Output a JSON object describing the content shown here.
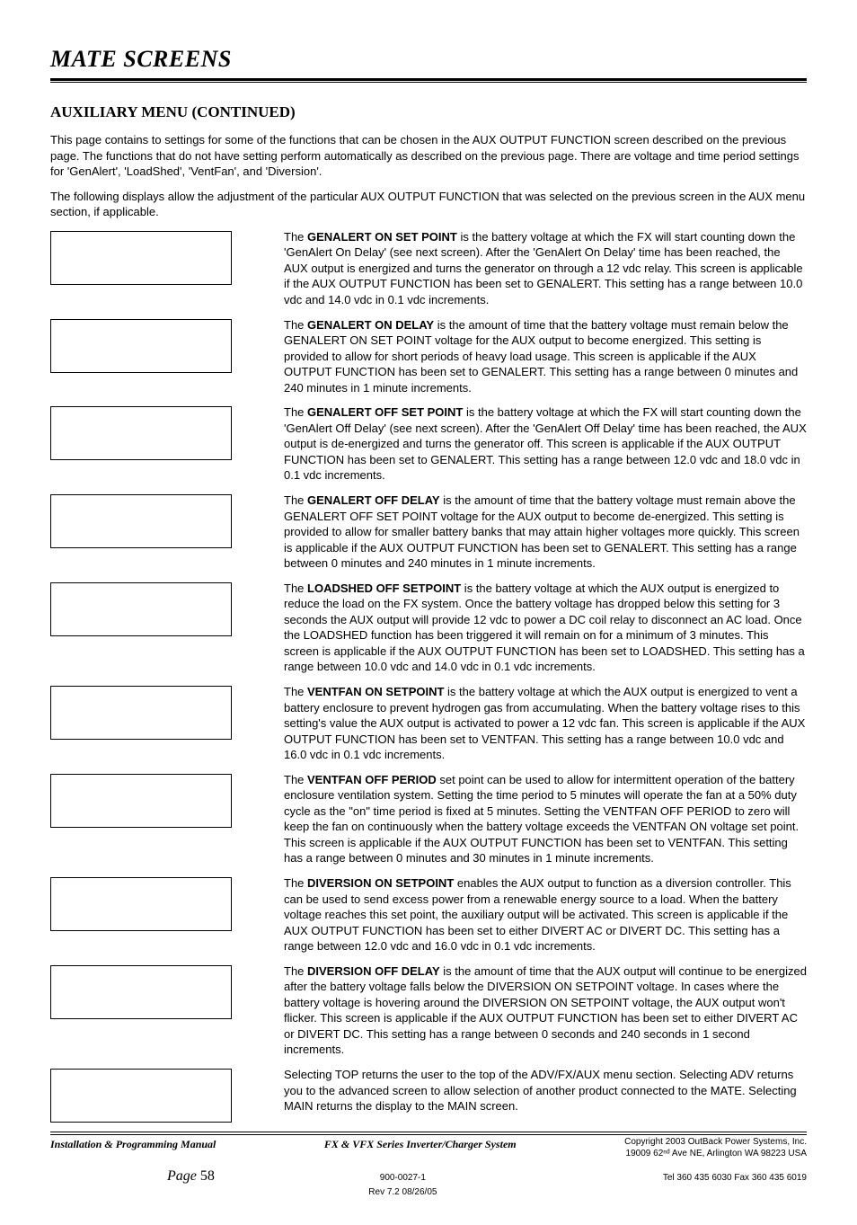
{
  "header": {
    "title": "MATE SCREENS"
  },
  "section": {
    "title": "AUXILIARY MENU (CONTINUED)",
    "intro1": "This page contains to settings for some of the functions that can be chosen in the AUX OUTPUT FUNCTION screen described on the previous page.  The functions that do not have setting perform automatically as described on the previous page.  There are voltage and time period settings for 'GenAlert', 'LoadShed', 'VentFan', and 'Diversion'.",
    "intro2": "The following displays allow the adjustment of the particular AUX OUTPUT FUNCTION that was selected on the previous screen in the AUX menu section, if applicable."
  },
  "entries": [
    {
      "label": "GENALERT ON SET POINT",
      "prefix": "The ",
      "text": " is the battery voltage at which the FX will start counting down the 'GenAlert On Delay' (see next screen).  After the 'GenAlert On Delay' time has been reached, the AUX output is energized and turns the generator on through a 12 vdc relay.  This screen is applicable if the AUX OUTPUT FUNCTION has been set to GENALERT.  This setting has a range between 10.0 vdc and 14.0 vdc in 0.1 vdc increments."
    },
    {
      "label": "GENALERT ON DELAY",
      "prefix": "The ",
      "text": " is the amount of time that the battery voltage must remain below the GENALERT ON SET POINT voltage for the AUX output to become energized.  This setting is provided to allow for short periods of heavy load usage.  This screen is applicable if the AUX OUTPUT FUNCTION has been set to GENALERT.  This setting has a range between 0 minutes and 240 minutes in 1 minute increments."
    },
    {
      "label": "GENALERT OFF SET POINT",
      "prefix": "The ",
      "text": " is the battery voltage at which the FX will start counting down the 'GenAlert Off Delay' (see next screen).  After the 'GenAlert Off Delay' time has been reached, the AUX output is de-energized and turns the generator off.  This screen is applicable if the AUX OUTPUT FUNCTION has been set to GENALERT.  This setting has a range between 12.0 vdc and 18.0 vdc in 0.1 vdc increments."
    },
    {
      "label": "GENALERT OFF DELAY",
      "prefix": "The ",
      "text": " is the amount of time that the battery voltage must remain above the GENALERT OFF SET POINT voltage for the AUX output to become de-energized.  This setting is provided to allow for smaller battery banks that may attain higher voltages more quickly.  This screen is applicable if the AUX OUTPUT FUNCTION has been set to GENALERT.  This setting has a range between 0 minutes and 240 minutes in 1 minute increments."
    },
    {
      "label": "LOADSHED OFF SETPOINT",
      "prefix": "The ",
      "text": " is the battery voltage at which the AUX output is energized to reduce the load on the FX system.  Once the battery voltage has dropped below this setting for 3 seconds the AUX output will provide 12 vdc to power a DC coil relay to disconnect an AC load.  Once the LOADSHED function has been triggered it will remain on for a minimum of 3 minutes.  This screen is applicable if the AUX OUTPUT FUNCTION has been set to LOADSHED.  This setting has a range between 10.0 vdc and 14.0 vdc in 0.1 vdc increments."
    },
    {
      "label": "VENTFAN ON SETPOINT",
      "prefix": "The ",
      "text": " is the battery voltage at which the AUX output is energized to vent a battery enclosure to prevent hydrogen gas from accumulating.  When the battery voltage rises to this setting's value the AUX output is activated to power a 12 vdc fan.  This screen is applicable if the AUX OUTPUT FUNCTION has been set to VENTFAN.  This setting has a range between 10.0 vdc and 16.0 vdc in 0.1 vdc increments."
    },
    {
      "label": "VENTFAN OFF PERIOD",
      "prefix": "The ",
      "text": " set point can be used to allow for intermittent operation of the battery enclosure ventilation system.  Setting the time period to 5 minutes will operate the fan at a 50% duty cycle as the \"on\" time period is fixed at 5 minutes.  Setting the VENTFAN OFF PERIOD to zero will keep the fan on continuously when the battery voltage exceeds the VENTFAN ON voltage set point.  This screen is applicable if the AUX OUTPUT FUNCTION has been set to VENTFAN.  This setting has a range between 0 minutes and 30 minutes in 1 minute increments."
    },
    {
      "label": "DIVERSION ON SETPOINT",
      "prefix": "The ",
      "text": " enables the AUX output to function as a diversion controller.  This can be used to send excess power from a renewable energy source to a load.  When the battery voltage reaches this set point, the auxiliary output will be activated.  This screen is applicable if the AUX OUTPUT FUNCTION has been set to either DIVERT AC or DIVERT DC.  This setting has a range between 12.0 vdc and 16.0 vdc in 0.1 vdc increments."
    },
    {
      "label": "DIVERSION OFF DELAY",
      "prefix": "The ",
      "text": " is the amount of time that the AUX output will continue to be energized after the battery voltage falls below the DIVERSION ON SETPOINT voltage.  In cases where the battery voltage is hovering around the DIVERSION ON SETPOINT voltage, the AUX output won't flicker.  This screen is applicable if the AUX OUTPUT FUNCTION has been set to either DIVERT AC or DIVERT DC.  This setting has a range between 0 seconds and 240 seconds in 1 second increments."
    },
    {
      "label": "",
      "prefix": "",
      "text": "Selecting TOP returns the user to the top of the ADV/FX/AUX menu section.  Selecting ADV returns you to the advanced screen to allow selection of another product connected to the MATE.  Selecting MAIN returns the display to the MAIN screen."
    }
  ],
  "footer": {
    "left": "Installation & Programming Manual",
    "center_title": "FX & VFX Series Inverter/Charger System",
    "doc_no": "900-0027-1",
    "copyright": "Copyright 2003      OutBack Power Systems, Inc.",
    "address": "19009 62ⁿᵈ Ave NE, Arlington  WA 98223 USA",
    "page_label": "Page",
    "page_num": "58",
    "rev": "Rev 7.2      08/26/05",
    "contact": "Tel 360 435 6030   Fax 360 435 6019"
  }
}
